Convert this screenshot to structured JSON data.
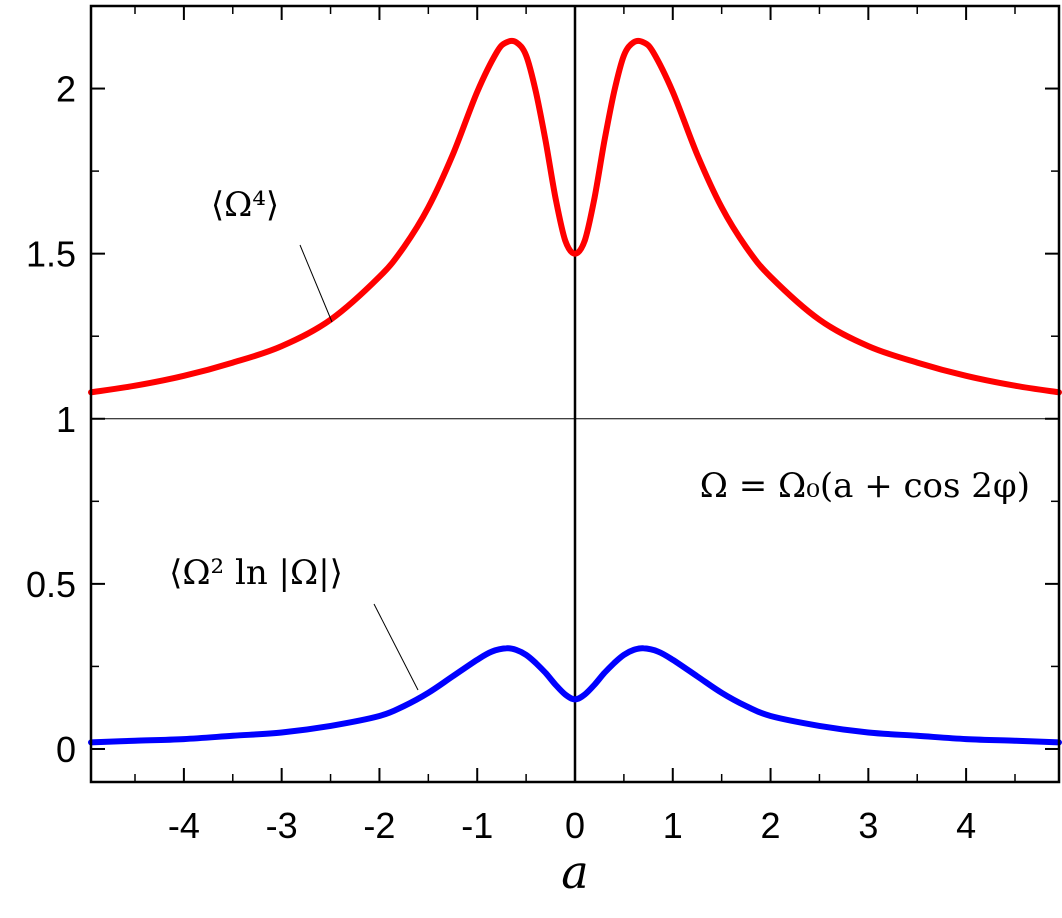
{
  "chart_data": {
    "type": "line",
    "xlabel": "a",
    "ylabel": "",
    "xlim": [
      -4.95,
      4.95
    ],
    "ylim": [
      -0.1,
      2.25
    ],
    "x_ticks": [
      -4,
      -3,
      -2,
      -1,
      0,
      1,
      2,
      3,
      4
    ],
    "x_tick_labels": [
      "-4",
      "-3",
      "-2",
      "-1",
      "0",
      "1",
      "2",
      "3",
      "4"
    ],
    "y_ticks": [
      0,
      0.5,
      1,
      1.5,
      2
    ],
    "y_tick_labels": [
      "0",
      "0.5",
      "1",
      "1.5",
      "2"
    ],
    "reference_lines": {
      "vertical_x": 0,
      "horizontal_y": 1
    },
    "grid": false,
    "legend": "none",
    "annotations": {
      "formula": "Ω = Ω₀(a + cos 2φ)",
      "label_omega4": "⟨Ω⁴⟩",
      "label_omega2ln": "⟨Ω² ln |Ω|⟩"
    },
    "series": [
      {
        "color": "#ff0000",
        "x": [
          -4.95,
          -4.5,
          -4.0,
          -3.5,
          -3.0,
          -2.5,
          -2.0,
          -1.75,
          -1.5,
          -1.25,
          -1.0,
          -0.8,
          -0.7,
          -0.6,
          -0.5,
          -0.4,
          -0.3,
          -0.2,
          -0.1,
          0.0,
          0.1,
          0.2,
          0.3,
          0.4,
          0.5,
          0.6,
          0.7,
          0.8,
          1.0,
          1.25,
          1.5,
          1.75,
          2.0,
          2.5,
          3.0,
          3.5,
          4.0,
          4.5,
          4.95
        ],
        "values": [
          1.08,
          1.1,
          1.13,
          1.17,
          1.22,
          1.3,
          1.43,
          1.52,
          1.64,
          1.8,
          1.99,
          2.11,
          2.14,
          2.14,
          2.1,
          1.99,
          1.84,
          1.67,
          1.54,
          1.5,
          1.54,
          1.67,
          1.84,
          1.99,
          2.1,
          2.14,
          2.14,
          2.11,
          1.99,
          1.8,
          1.64,
          1.52,
          1.43,
          1.3,
          1.22,
          1.17,
          1.13,
          1.1,
          1.08
        ]
      },
      {
        "color": "#0000ff",
        "x": [
          -4.95,
          -4.5,
          -4.0,
          -3.5,
          -3.0,
          -2.5,
          -2.0,
          -1.75,
          -1.5,
          -1.25,
          -1.0,
          -0.85,
          -0.7,
          -0.6,
          -0.5,
          -0.4,
          -0.3,
          -0.2,
          -0.1,
          0.0,
          0.1,
          0.2,
          0.3,
          0.4,
          0.5,
          0.6,
          0.7,
          0.85,
          1.0,
          1.25,
          1.5,
          1.75,
          2.0,
          2.5,
          3.0,
          3.5,
          4.0,
          4.5,
          4.95
        ],
        "values": [
          0.02,
          0.025,
          0.03,
          0.04,
          0.05,
          0.07,
          0.1,
          0.13,
          0.17,
          0.22,
          0.27,
          0.295,
          0.305,
          0.3,
          0.285,
          0.26,
          0.23,
          0.195,
          0.165,
          0.15,
          0.165,
          0.195,
          0.23,
          0.26,
          0.285,
          0.3,
          0.305,
          0.295,
          0.27,
          0.22,
          0.17,
          0.13,
          0.1,
          0.07,
          0.05,
          0.04,
          0.03,
          0.025,
          0.02
        ]
      }
    ]
  }
}
